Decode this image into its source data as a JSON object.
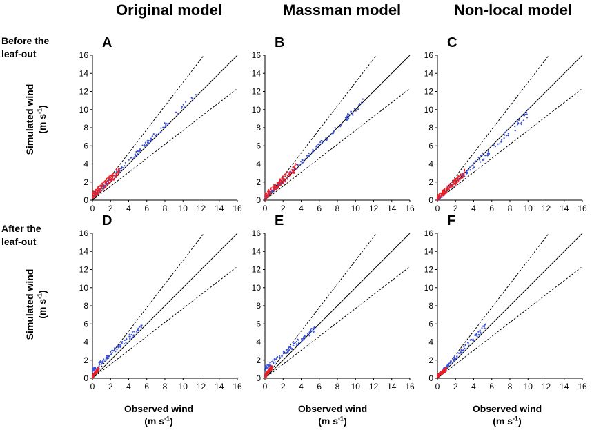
{
  "column_titles": [
    "Original model",
    "Massman model",
    "Non-local model"
  ],
  "row_labels": [
    {
      "line1": "Before the",
      "line2": "leaf-out"
    },
    {
      "line1": "After the",
      "line2": "leaf-out"
    }
  ],
  "ylabel": {
    "main": "Simulated wind",
    "unit_base": "(m s",
    "unit_exp": "-1",
    "unit_end": ")"
  },
  "xlabel": {
    "main": "Observed wind",
    "unit_base": "(m s",
    "unit_exp": "-1",
    "unit_end": ")"
  },
  "colors": {
    "blue": "#3b52d9",
    "red": "#e8202a",
    "line": "#000000"
  },
  "chart_data": [
    {
      "panel": "A",
      "type": "scatter",
      "title": "Original model",
      "row": "Before the leaf-out",
      "xlim": [
        0,
        16
      ],
      "ylim": [
        0,
        16
      ],
      "xticks": [
        0,
        2,
        4,
        6,
        8,
        10,
        12,
        14,
        16
      ],
      "yticks": [
        0,
        2,
        4,
        6,
        8,
        10,
        12,
        14,
        16
      ],
      "reference_lines": [
        {
          "slope": 1,
          "style": "solid"
        },
        {
          "slope": 1.3,
          "style": "dashed"
        },
        {
          "slope": 0.77,
          "style": "dashed"
        }
      ],
      "series": [
        {
          "name": "blue",
          "color": "#3b52d9",
          "slope": 1.02,
          "xmax": 11.5,
          "spread": 0.25,
          "offset": 0.3,
          "count": 120
        },
        {
          "name": "red",
          "color": "#e8202a",
          "slope": 1.1,
          "xmax": 3.0,
          "spread": 0.6,
          "offset": 0.5,
          "count": 140
        }
      ]
    },
    {
      "panel": "B",
      "type": "scatter",
      "title": "Massman model",
      "row": "Before the leaf-out",
      "xlim": [
        0,
        16
      ],
      "ylim": [
        0,
        16
      ],
      "xticks": [
        0,
        2,
        4,
        6,
        8,
        10,
        12,
        14,
        16
      ],
      "yticks": [
        0,
        2,
        4,
        6,
        8,
        10,
        12,
        14,
        16
      ],
      "reference_lines": [
        {
          "slope": 1,
          "style": "solid"
        },
        {
          "slope": 1.3,
          "style": "dashed"
        },
        {
          "slope": 0.77,
          "style": "dashed"
        }
      ],
      "series": [
        {
          "name": "blue",
          "color": "#3b52d9",
          "slope": 1.0,
          "xmax": 11.0,
          "spread": 0.25,
          "offset": 0.2,
          "count": 120
        },
        {
          "name": "red",
          "color": "#e8202a",
          "slope": 1.05,
          "xmax": 3.5,
          "spread": 0.6,
          "offset": 0.4,
          "count": 140
        }
      ]
    },
    {
      "panel": "C",
      "type": "scatter",
      "title": "Non-local model",
      "row": "Before the leaf-out",
      "xlim": [
        0,
        16
      ],
      "ylim": [
        0,
        16
      ],
      "xticks": [
        0,
        2,
        4,
        6,
        8,
        10,
        12,
        14,
        16
      ],
      "yticks": [
        0,
        2,
        4,
        6,
        8,
        10,
        12,
        14,
        16
      ],
      "reference_lines": [
        {
          "slope": 1,
          "style": "solid"
        },
        {
          "slope": 1.3,
          "style": "dashed"
        },
        {
          "slope": 0.77,
          "style": "dashed"
        }
      ],
      "series": [
        {
          "name": "blue",
          "color": "#3b52d9",
          "slope": 0.95,
          "xmax": 10.5,
          "spread": 0.4,
          "offset": 0.1,
          "count": 120
        },
        {
          "name": "red",
          "color": "#e8202a",
          "slope": 1.0,
          "xmax": 3.0,
          "spread": 0.5,
          "offset": 0.2,
          "count": 140
        }
      ]
    },
    {
      "panel": "D",
      "type": "scatter",
      "title": "Original model",
      "row": "After the leaf-out",
      "xlim": [
        0,
        16
      ],
      "ylim": [
        0,
        16
      ],
      "xticks": [
        0,
        2,
        4,
        6,
        8,
        10,
        12,
        14,
        16
      ],
      "yticks": [
        0,
        2,
        4,
        6,
        8,
        10,
        12,
        14,
        16
      ],
      "reference_lines": [
        {
          "slope": 1,
          "style": "solid"
        },
        {
          "slope": 1.3,
          "style": "dashed"
        },
        {
          "slope": 0.77,
          "style": "dashed"
        }
      ],
      "series": [
        {
          "name": "blue",
          "color": "#3b52d9",
          "slope": 1.05,
          "xmax": 5.5,
          "spread": 0.35,
          "offset": 0.9,
          "count": 110
        },
        {
          "name": "red",
          "color": "#e8202a",
          "slope": 1.5,
          "xmax": 0.7,
          "spread": 0.3,
          "offset": 0.2,
          "count": 100
        }
      ]
    },
    {
      "panel": "E",
      "type": "scatter",
      "title": "Massman model",
      "row": "After the leaf-out",
      "xlim": [
        0,
        16
      ],
      "ylim": [
        0,
        16
      ],
      "xticks": [
        0,
        2,
        4,
        6,
        8,
        10,
        12,
        14,
        16
      ],
      "yticks": [
        0,
        2,
        4,
        6,
        8,
        10,
        12,
        14,
        16
      ],
      "reference_lines": [
        {
          "slope": 1,
          "style": "solid"
        },
        {
          "slope": 1.3,
          "style": "dashed"
        },
        {
          "slope": 0.77,
          "style": "dashed"
        }
      ],
      "series": [
        {
          "name": "blue",
          "color": "#3b52d9",
          "slope": 1.0,
          "xmax": 5.5,
          "spread": 0.35,
          "offset": 1.1,
          "count": 110
        },
        {
          "name": "red",
          "color": "#e8202a",
          "slope": 1.6,
          "xmax": 0.8,
          "spread": 0.4,
          "offset": 0.2,
          "count": 100
        }
      ]
    },
    {
      "panel": "F",
      "type": "scatter",
      "title": "Non-local model",
      "row": "After the leaf-out",
      "xlim": [
        0,
        16
      ],
      "ylim": [
        0,
        16
      ],
      "xticks": [
        0,
        2,
        4,
        6,
        8,
        10,
        12,
        14,
        16
      ],
      "yticks": [
        0,
        2,
        4,
        6,
        8,
        10,
        12,
        14,
        16
      ],
      "reference_lines": [
        {
          "slope": 1,
          "style": "solid"
        },
        {
          "slope": 1.3,
          "style": "dashed"
        },
        {
          "slope": 0.77,
          "style": "dashed"
        }
      ],
      "series": [
        {
          "name": "blue",
          "color": "#3b52d9",
          "slope": 1.08,
          "xmax": 5.5,
          "spread": 0.3,
          "offset": 0.2,
          "count": 110
        },
        {
          "name": "red",
          "color": "#e8202a",
          "slope": 1.0,
          "xmax": 1.0,
          "spread": 0.3,
          "offset": 0.25,
          "count": 100
        }
      ]
    }
  ]
}
